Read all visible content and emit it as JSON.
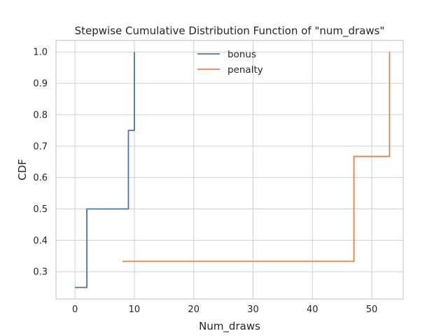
{
  "chart_data": {
    "type": "line",
    "step": "post",
    "title": "Stepwise Cumulative Distribution Function of \"num_draws\"",
    "xlabel": "Num_draws",
    "ylabel": "CDF",
    "xlim": [
      -3.2,
      55.3
    ],
    "ylim": [
      0.213,
      1.037
    ],
    "xticks": [
      0,
      10,
      20,
      30,
      40,
      50
    ],
    "yticks": [
      0.3,
      0.4,
      0.5,
      0.6,
      0.7,
      0.8,
      0.9,
      1.0
    ],
    "ytick_labels": [
      "0.3",
      "0.4",
      "0.5",
      "0.6",
      "0.7",
      "0.8",
      "0.9",
      "1.0"
    ],
    "grid": true,
    "legend": "top-center",
    "series": [
      {
        "name": "bonus",
        "color": "#4c72b0",
        "x": [
          0,
          2,
          9,
          10
        ],
        "y": [
          0.25,
          0.5,
          0.75,
          1.0
        ]
      },
      {
        "name": "penalty",
        "color": "#dd8452",
        "x": [
          8,
          47,
          53
        ],
        "y": [
          0.333,
          0.667,
          1.0
        ]
      }
    ]
  }
}
